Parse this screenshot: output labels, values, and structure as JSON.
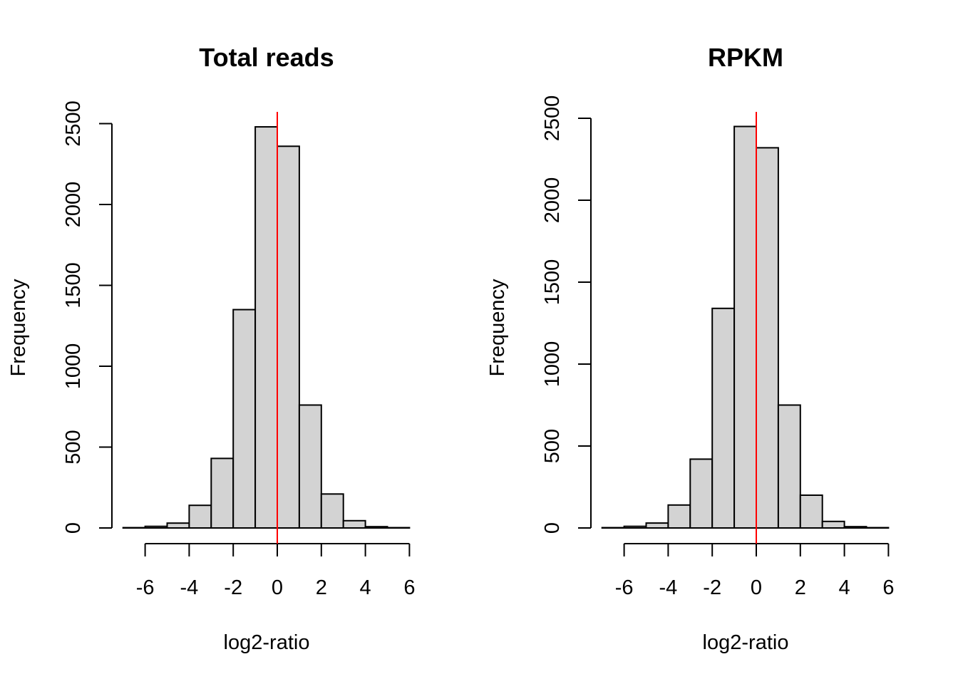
{
  "chart_data": [
    {
      "type": "bar",
      "subtype": "histogram",
      "title": "Total reads",
      "xlabel": "log2-ratio",
      "ylabel": "Frequency",
      "bin_edges": [
        -7,
        -6,
        -5,
        -4,
        -3,
        -2,
        -1,
        0,
        1,
        2,
        3,
        4,
        5,
        6
      ],
      "values": [
        2,
        10,
        30,
        140,
        430,
        1350,
        2480,
        2360,
        760,
        210,
        45,
        8,
        2
      ],
      "xlim": [
        -7,
        6
      ],
      "ylim": [
        0,
        2500
      ],
      "x_ticks": [
        -6,
        -4,
        -2,
        0,
        2,
        4,
        6
      ],
      "x_tick_labels": [
        "-6",
        "-4",
        "-2",
        "0",
        "2",
        "4",
        "6"
      ],
      "y_ticks": [
        0,
        500,
        1000,
        1500,
        2000,
        2500
      ],
      "y_tick_labels": [
        "0",
        "500",
        "1000",
        "1500",
        "2000",
        "2500"
      ],
      "vline": {
        "x": 0,
        "color": "#ff0000"
      },
      "bar_color": "#d3d3d3",
      "grid": false
    },
    {
      "type": "bar",
      "subtype": "histogram",
      "title": "RPKM",
      "xlabel": "log2-ratio",
      "ylabel": "Frequency",
      "bin_edges": [
        -7,
        -6,
        -5,
        -4,
        -3,
        -2,
        -1,
        0,
        1,
        2,
        3,
        4,
        5,
        6
      ],
      "values": [
        2,
        10,
        30,
        140,
        420,
        1340,
        2450,
        2320,
        750,
        200,
        40,
        8,
        2
      ],
      "xlim": [
        -7,
        6
      ],
      "ylim": [
        0,
        2500
      ],
      "x_ticks": [
        -6,
        -4,
        -2,
        0,
        2,
        4,
        6
      ],
      "x_tick_labels": [
        "-6",
        "-4",
        "-2",
        "0",
        "2",
        "4",
        "6"
      ],
      "y_ticks": [
        0,
        500,
        1000,
        1500,
        2000,
        2500
      ],
      "y_tick_labels": [
        "0",
        "500",
        "1000",
        "1500",
        "2000",
        "2500"
      ],
      "vline": {
        "x": 0,
        "color": "#ff0000"
      },
      "bar_color": "#d3d3d3",
      "grid": false
    }
  ]
}
